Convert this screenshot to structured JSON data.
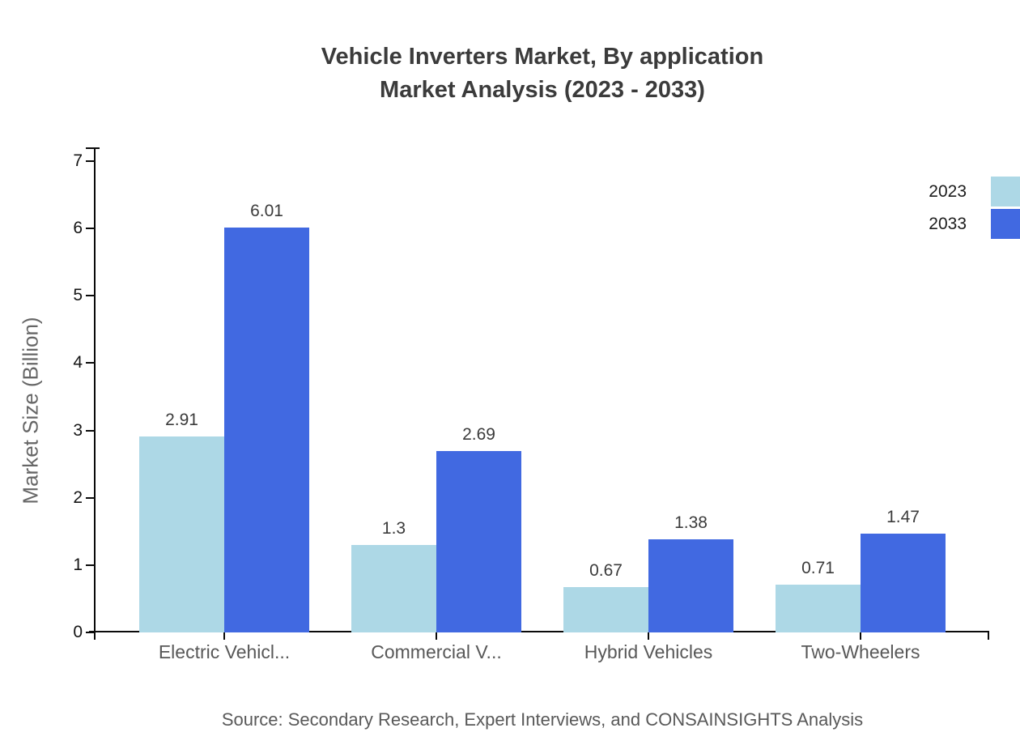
{
  "chart": {
    "title_line1": "Vehicle Inverters Market, By application",
    "title_line2": "Market Analysis (2023 - 2033)",
    "ylabel": "Market Size (Billion)",
    "source": "Source: Secondary Research, Expert Interviews, and CONSAINSIGHTS Analysis"
  },
  "chart_data": {
    "type": "bar",
    "title": "Vehicle Inverters Market, By application Market Analysis (2023 - 2033)",
    "categories": [
      "Electric Vehicl...",
      "Commercial V...",
      "Hybrid Vehicles",
      "Two-Wheelers"
    ],
    "series": [
      {
        "name": "2023",
        "color": "#ADD8E6",
        "values": [
          2.91,
          1.3,
          0.67,
          0.71
        ]
      },
      {
        "name": "2033",
        "color": "#4169E1",
        "values": [
          6.01,
          2.69,
          1.38,
          1.47
        ]
      }
    ],
    "value_labels": [
      [
        "2.91",
        "1.3",
        "0.67",
        "0.71"
      ],
      [
        "6.01",
        "2.69",
        "1.38",
        "1.47"
      ]
    ],
    "xlabel": "",
    "ylabel": "Market Size (Billion)",
    "ylim": [
      0,
      7
    ],
    "yticks": [
      0,
      1,
      2,
      3,
      4,
      5,
      6,
      7
    ],
    "grid": false,
    "legend_position": "top-right",
    "axis_color": "#0a0a0a"
  }
}
